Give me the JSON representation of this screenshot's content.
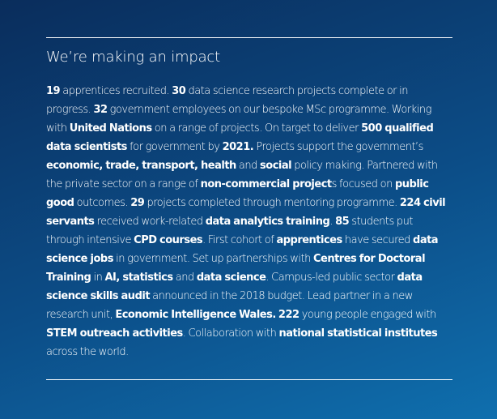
{
  "heading": "We’re making an impact",
  "segments": [
    {
      "t": "19",
      "b": true
    },
    {
      "t": " apprentices recruited. ",
      "b": false
    },
    {
      "t": "30",
      "b": true
    },
    {
      "t": " data science research projects complete or in progress. ",
      "b": false
    },
    {
      "t": "32",
      "b": true
    },
    {
      "t": " government employees on our bespoke MSc programme. Working with ",
      "b": false
    },
    {
      "t": "United Nations",
      "b": true
    },
    {
      "t": " on a range of projects. On target to deliver ",
      "b": false
    },
    {
      "t": "500 qualified data scientists",
      "b": true
    },
    {
      "t": " for government by ",
      "b": false
    },
    {
      "t": "2021.",
      "b": true
    },
    {
      "t": " Projects support the government’s ",
      "b": false
    },
    {
      "t": "economic, trade, transport, health",
      "b": true
    },
    {
      "t": " and ",
      "b": false
    },
    {
      "t": "social",
      "b": true
    },
    {
      "t": " policy making. Partnered with the private sector on a range of ",
      "b": false
    },
    {
      "t": "non-commercial project",
      "b": true
    },
    {
      "t": "s focused on ",
      "b": false
    },
    {
      "t": "public good",
      "b": true
    },
    {
      "t": " outcomes. ",
      "b": false
    },
    {
      "t": "29",
      "b": true
    },
    {
      "t": " projects completed through mentoring programme. ",
      "b": false
    },
    {
      "t": "224 civil servants",
      "b": true
    },
    {
      "t": " received work-related ",
      "b": false
    },
    {
      "t": "data analytics training",
      "b": true
    },
    {
      "t": ". ",
      "b": false
    },
    {
      "t": "85",
      "b": true
    },
    {
      "t": " students put through intensive ",
      "b": false
    },
    {
      "t": "CPD courses",
      "b": true
    },
    {
      "t": ". First cohort of ",
      "b": false
    },
    {
      "t": "apprentices",
      "b": true
    },
    {
      "t": " have secured ",
      "b": false
    },
    {
      "t": "data science jobs",
      "b": true
    },
    {
      "t": " in government. Set up partnerships with ",
      "b": false
    },
    {
      "t": "Centres for Doctoral Training",
      "b": true
    },
    {
      "t": " in ",
      "b": false
    },
    {
      "t": "AI, statistics",
      "b": true
    },
    {
      "t": " and ",
      "b": false
    },
    {
      "t": "data science",
      "b": true
    },
    {
      "t": ". Campus-led public sector ",
      "b": false
    },
    {
      "t": "data science skills audit",
      "b": true
    },
    {
      "t": " announced in the 2018 budget. Lead partner in a new research unit, ",
      "b": false
    },
    {
      "t": "Economic Intelligence Wales.",
      "b": true
    },
    {
      "t": " ",
      "b": false
    },
    {
      "t": "222",
      "b": true
    },
    {
      "t": " young people engaged with ",
      "b": false
    },
    {
      "t": "STEM outreach activities",
      "b": true
    },
    {
      "t": ". Collaboration with ",
      "b": false
    },
    {
      "t": "national statistical institutes",
      "b": true
    },
    {
      "t": " across the world.",
      "b": false
    }
  ],
  "colors": {
    "background_dark": "#0a2d5c",
    "background_light": "#0f6fae",
    "text": "#ffffff"
  }
}
